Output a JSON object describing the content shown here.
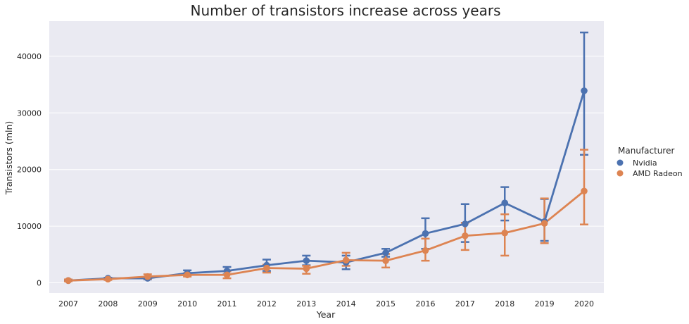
{
  "chart_data": {
    "type": "line",
    "title": "Number of transistors increase across years",
    "xlabel": "Year",
    "ylabel": "Transistors (mln)",
    "categories": [
      "2007",
      "2008",
      "2009",
      "2010",
      "2011",
      "2012",
      "2013",
      "2014",
      "2015",
      "2016",
      "2017",
      "2018",
      "2019",
      "2020"
    ],
    "ylim": [
      -1800,
      46200
    ],
    "yticks": [
      0,
      10000,
      20000,
      30000,
      40000
    ],
    "grid": true,
    "legend": {
      "title": "Manufacturer",
      "position": "right"
    },
    "error_bars": true,
    "series": [
      {
        "name": "Nvidia",
        "color": "#4c72b0",
        "values": [
          400,
          800,
          800,
          1700,
          2100,
          3100,
          3900,
          3600,
          5300,
          8700,
          10400,
          14100,
          10800,
          33900
        ],
        "err_low": [
          300,
          700,
          600,
          1300,
          1500,
          2100,
          3100,
          2400,
          4600,
          6000,
          7200,
          11000,
          7400,
          22600
        ],
        "err_high": [
          500,
          900,
          1000,
          2200,
          2800,
          4100,
          4800,
          4800,
          6000,
          11400,
          13900,
          16900,
          14800,
          44200
        ]
      },
      {
        "name": "AMD Radeon",
        "color": "#dd8452",
        "values": [
          400,
          650,
          1100,
          1400,
          1400,
          2600,
          2500,
          4000,
          3900,
          5700,
          8300,
          8800,
          10500,
          16200
        ],
        "err_low": [
          250,
          500,
          700,
          1100,
          800,
          1800,
          1600,
          3000,
          2700,
          3900,
          5800,
          4800,
          7000,
          10300
        ],
        "err_high": [
          600,
          800,
          1500,
          1700,
          2000,
          3200,
          3000,
          5300,
          5100,
          7800,
          10600,
          12100,
          14900,
          23500
        ]
      }
    ]
  }
}
